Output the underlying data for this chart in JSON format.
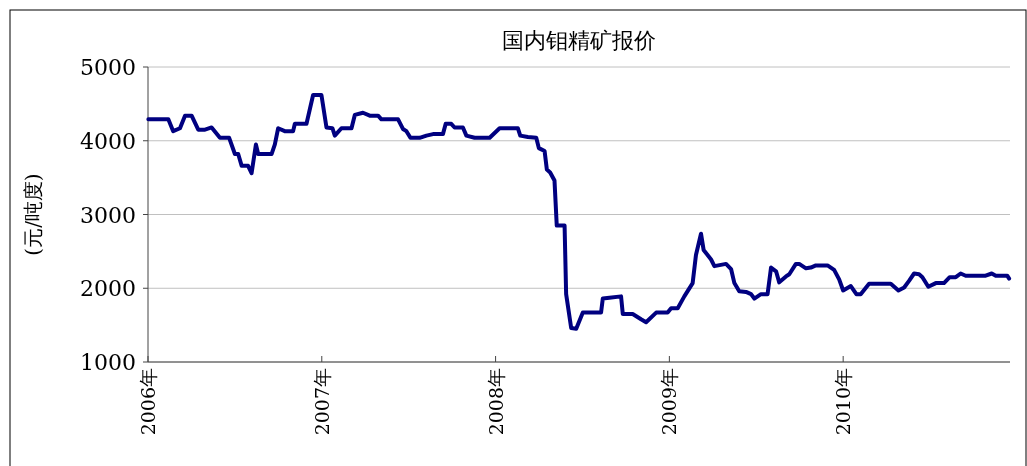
{
  "chart_data": {
    "type": "line",
    "title": "国内钼精矿报价",
    "ylabel": "(元/吨度)",
    "grid": "y",
    "xlim": [
      2006,
      2010.96
    ],
    "ylim": [
      1000,
      5000
    ],
    "xticks": [
      {
        "value": 2006,
        "label": "2006年"
      },
      {
        "value": 2007,
        "label": "2007年"
      },
      {
        "value": 2008,
        "label": "2008年"
      },
      {
        "value": 2009,
        "label": "2009年"
      },
      {
        "value": 2010,
        "label": "2010年"
      }
    ],
    "yticks": [
      1000,
      2000,
      3000,
      4000,
      5000
    ],
    "series": [
      {
        "color": "#000080",
        "x": [
          2006.002,
          2006.117,
          2006.145,
          2006.184,
          2006.213,
          2006.251,
          2006.289,
          2006.328,
          2006.366,
          2006.414,
          2006.467,
          2006.5,
          2006.519,
          2006.539,
          2006.576,
          2006.596,
          2006.621,
          2006.634,
          2006.711,
          2006.73,
          2006.749,
          2006.787,
          2006.835,
          2006.845,
          2006.912,
          2006.95,
          2006.998,
          2007.027,
          2007.061,
          2007.075,
          2007.113,
          2007.171,
          2007.19,
          2007.237,
          2007.276,
          2007.324,
          2007.343,
          2007.439,
          2007.467,
          2007.487,
          2007.51,
          2007.563,
          2007.602,
          2007.64,
          2007.697,
          2007.713,
          2007.745,
          2007.764,
          2007.812,
          2007.832,
          2007.879,
          2007.966,
          2008.023,
          2008.128,
          2008.142,
          2008.186,
          2008.234,
          2008.249,
          2008.282,
          2008.295,
          2008.314,
          2008.339,
          2008.352,
          2008.397,
          2008.406,
          2008.435,
          2008.464,
          2008.502,
          2008.607,
          2008.617,
          2008.655,
          2008.722,
          2008.732,
          2008.789,
          2008.837,
          2008.866,
          2008.924,
          2008.99,
          2009.01,
          2009.048,
          2009.086,
          2009.134,
          2009.153,
          2009.182,
          2009.197,
          2009.24,
          2009.259,
          2009.326,
          2009.355,
          2009.374,
          2009.402,
          2009.441,
          2009.47,
          2009.489,
          2009.527,
          2009.565,
          2009.585,
          2009.614,
          2009.632,
          2009.671,
          2009.69,
          2009.728,
          2009.747,
          2009.786,
          2009.814,
          2009.843,
          2009.91,
          2009.948,
          2009.977,
          2010.0,
          2010.044,
          2010.076,
          2010.101,
          2010.149,
          2010.274,
          2010.318,
          2010.351,
          2010.379,
          2010.408,
          2010.437,
          2010.456,
          2010.49,
          2010.533,
          2010.58,
          2010.613,
          2010.648,
          2010.676,
          2010.705,
          2010.82,
          2010.855,
          2010.878,
          2010.944,
          2010.955
        ],
        "values": [
          4290,
          4290,
          4130,
          4170,
          4340,
          4340,
          4150,
          4150,
          4180,
          4040,
          4040,
          3820,
          3820,
          3660,
          3660,
          3560,
          3950,
          3820,
          3820,
          3950,
          4170,
          4130,
          4130,
          4230,
          4230,
          4620,
          4620,
          4180,
          4170,
          4070,
          4170,
          4170,
          4350,
          4380,
          4340,
          4340,
          4290,
          4290,
          4160,
          4130,
          4040,
          4040,
          4070,
          4090,
          4090,
          4230,
          4230,
          4180,
          4180,
          4070,
          4040,
          4040,
          4170,
          4170,
          4070,
          4050,
          4040,
          3900,
          3860,
          3610,
          3570,
          3460,
          2850,
          2850,
          1920,
          1460,
          1450,
          1670,
          1670,
          1860,
          1870,
          1890,
          1650,
          1650,
          1580,
          1540,
          1670,
          1670,
          1730,
          1730,
          1890,
          2070,
          2450,
          2740,
          2520,
          2390,
          2300,
          2330,
          2260,
          2070,
          1960,
          1950,
          1920,
          1860,
          1920,
          1920,
          2280,
          2230,
          2080,
          2160,
          2190,
          2330,
          2330,
          2270,
          2280,
          2310,
          2310,
          2250,
          2120,
          1970,
          2030,
          1920,
          1920,
          2060,
          2060,
          1970,
          2010,
          2100,
          2200,
          2190,
          2150,
          2020,
          2070,
          2070,
          2150,
          2150,
          2200,
          2170,
          2170,
          2200,
          2170,
          2170,
          2130
        ]
      }
    ]
  }
}
